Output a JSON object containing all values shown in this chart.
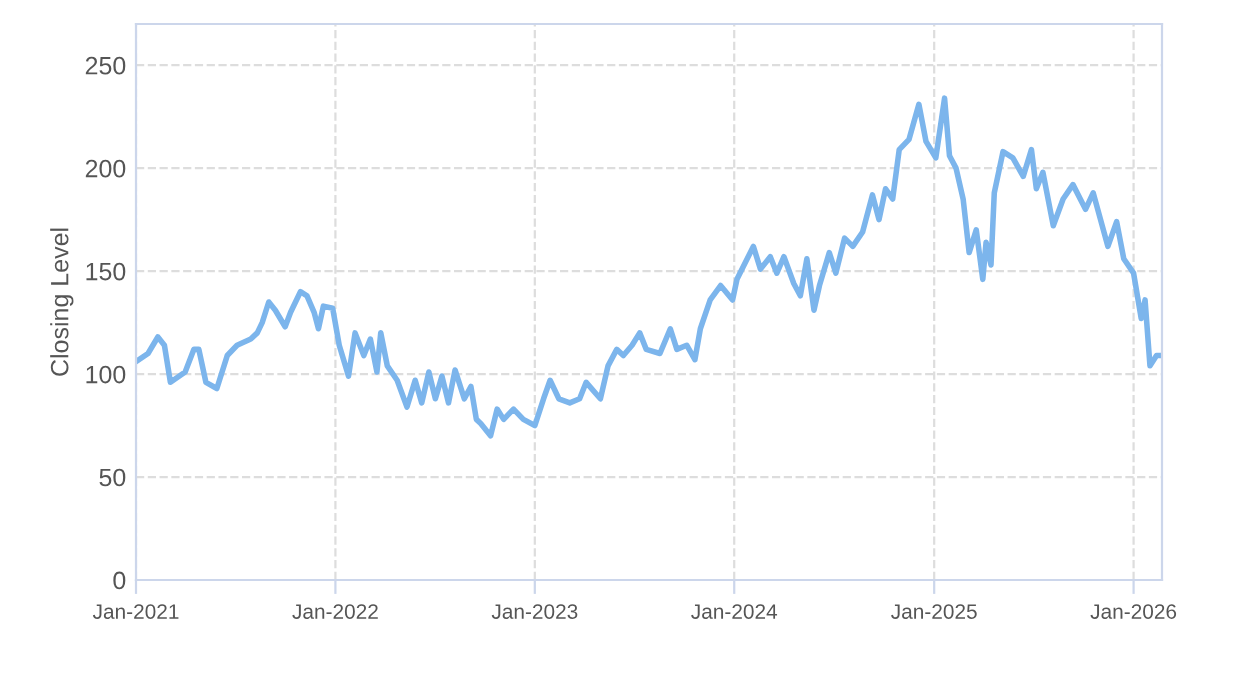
{
  "chart_data": {
    "type": "line",
    "ylabel": "Closing Level",
    "x": [
      "2021-01-01",
      "2021-01-23",
      "2021-02-10",
      "2021-02-22",
      "2021-03-05",
      "2021-04-01",
      "2021-04-17",
      "2021-04-26",
      "2021-05-09",
      "2021-05-29",
      "2021-06-17",
      "2021-07-05",
      "2021-07-30",
      "2021-08-11",
      "2021-08-20",
      "2021-09-01",
      "2021-09-13",
      "2021-10-01",
      "2021-10-11",
      "2021-10-29",
      "2021-11-10",
      "2021-11-23",
      "2021-12-01",
      "2021-12-10",
      "2021-12-27",
      "2022-01-08",
      "2022-01-25",
      "2022-02-06",
      "2022-02-22",
      "2022-03-06",
      "2022-03-18",
      "2022-03-25",
      "2022-04-06",
      "2022-04-24",
      "2022-05-12",
      "2022-05-27",
      "2022-06-08",
      "2022-06-21",
      "2022-07-03",
      "2022-07-15",
      "2022-07-27",
      "2022-08-08",
      "2022-08-25",
      "2022-09-06",
      "2022-09-16",
      "2022-09-24",
      "2022-10-12",
      "2022-10-24",
      "2022-11-05",
      "2022-11-23",
      "2022-12-11",
      "2023-01-01",
      "2023-01-17",
      "2023-01-29",
      "2023-02-14",
      "2023-03-06",
      "2023-03-24",
      "2023-04-05",
      "2023-05-01",
      "2023-05-15",
      "2023-05-31",
      "2023-06-12",
      "2023-06-28",
      "2023-07-12",
      "2023-07-24",
      "2023-08-18",
      "2023-09-06",
      "2023-09-18",
      "2023-10-06",
      "2023-10-21",
      "2023-10-31",
      "2023-11-18",
      "2023-12-07",
      "2023-12-29",
      "2024-01-06",
      "2024-02-05",
      "2024-02-18",
      "2024-03-07",
      "2024-03-19",
      "2024-04-01",
      "2024-04-19",
      "2024-05-01",
      "2024-05-13",
      "2024-05-26",
      "2024-06-05",
      "2024-06-23",
      "2024-07-05",
      "2024-07-21",
      "2024-08-05",
      "2024-08-23",
      "2024-09-10",
      "2024-09-22",
      "2024-10-04",
      "2024-10-17",
      "2024-10-29",
      "2024-11-16",
      "2024-12-04",
      "2024-12-17",
      "2025-01-04",
      "2025-01-20",
      "2025-01-29",
      "2025-02-10",
      "2025-02-23",
      "2025-03-06",
      "2025-03-19",
      "2025-03-31",
      "2025-04-06",
      "2025-04-15",
      "2025-04-21",
      "2025-05-07",
      "2025-05-25",
      "2025-06-13",
      "2025-06-28",
      "2025-07-07",
      "2025-07-19",
      "2025-08-07",
      "2025-08-25",
      "2025-09-12",
      "2025-10-05",
      "2025-10-19",
      "2025-11-15",
      "2025-12-01",
      "2025-12-14",
      "2026-01-01",
      "2026-01-15",
      "2026-01-22",
      "2026-01-31",
      "2026-02-12",
      "2026-02-22"
    ],
    "series": [
      {
        "color": "#7cb5ec",
        "values": [
          106,
          110,
          118,
          114,
          96,
          101,
          112,
          112,
          96,
          93,
          109,
          114,
          117,
          120,
          125,
          135,
          131,
          123,
          130,
          140,
          138,
          130,
          122,
          133,
          132,
          114,
          99,
          120,
          109,
          117,
          101,
          120,
          104,
          97,
          84,
          97,
          86,
          101,
          88,
          99,
          86,
          102,
          88,
          94,
          78,
          76,
          70,
          83,
          78,
          83,
          78,
          75,
          88,
          97,
          88,
          86,
          88,
          96,
          88,
          104,
          112,
          109,
          114,
          120,
          112,
          110,
          122,
          112,
          114,
          107,
          122,
          136,
          143,
          136,
          146,
          162,
          151,
          157,
          149,
          157,
          144,
          138,
          156,
          131,
          143,
          159,
          149,
          166,
          162,
          169,
          187,
          175,
          190,
          185,
          209,
          214,
          231,
          213,
          205,
          234,
          206,
          200,
          185,
          159,
          170,
          146,
          164,
          153,
          188,
          208,
          205,
          196,
          209,
          190,
          198,
          172,
          185,
          192,
          180,
          188,
          162,
          174,
          156,
          149,
          127,
          136,
          104,
          109,
          109
        ]
      }
    ],
    "xlim": [
      "2021-01-01",
      "2026-02-22"
    ],
    "xticks": [
      {
        "value": "2021-01-01",
        "label": "Jan-2021"
      },
      {
        "value": "2022-01-01",
        "label": "Jan-2022"
      },
      {
        "value": "2023-01-01",
        "label": "Jan-2023"
      },
      {
        "value": "2024-01-01",
        "label": "Jan-2024"
      },
      {
        "value": "2025-01-01",
        "label": "Jan-2025"
      },
      {
        "value": "2026-01-01",
        "label": "Jan-2026"
      }
    ],
    "ylim": [
      0,
      270
    ],
    "yticks": [
      0,
      50,
      100,
      150,
      200,
      250
    ],
    "grid": true,
    "marker": "none",
    "line_style": "solid",
    "legend": false
  }
}
